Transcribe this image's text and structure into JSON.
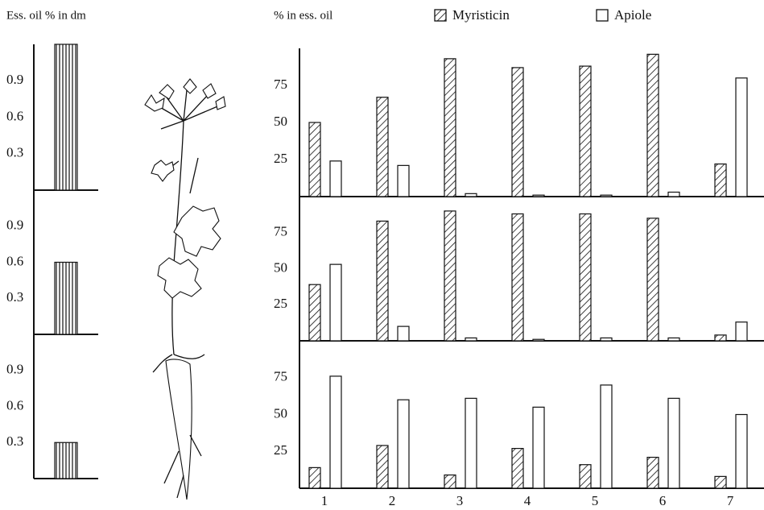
{
  "chart_data": [
    {
      "type": "bar",
      "y_label": "Ess. oil % in dm",
      "categories": [
        null
      ],
      "values": [
        1.2
      ],
      "color": "#111111",
      "hatch": "vertical",
      "ylim": [
        0,
        1.2
      ],
      "yticks": [
        0.3,
        0.6,
        0.9
      ]
    },
    {
      "type": "bar",
      "categories": [
        null
      ],
      "values": [
        0.6
      ],
      "color": "#111111",
      "hatch": "vertical",
      "ylim": [
        0,
        1.2
      ],
      "yticks": [
        0.3,
        0.6,
        0.9
      ]
    },
    {
      "type": "bar",
      "categories": [
        null
      ],
      "values": [
        0.3
      ],
      "color": "#111111",
      "hatch": "vertical",
      "ylim": [
        0,
        1.2
      ],
      "yticks": [
        0.3,
        0.6,
        0.9
      ]
    },
    {
      "type": "grouped_bar",
      "y_label": "% in ess. oil",
      "legend": "top",
      "categories": [
        null,
        null,
        null,
        null,
        null,
        null,
        null
      ],
      "series": [
        {
          "name": "Myristicin",
          "color": "#111111",
          "hatch": "diagonal",
          "values": [
            50,
            67,
            93,
            87,
            88,
            96,
            22
          ]
        },
        {
          "name": "Apiole",
          "color": "#111111",
          "hatch": "none",
          "values": [
            24,
            21,
            2,
            1,
            1,
            3,
            80
          ]
        }
      ],
      "ylim": [
        0,
        100
      ],
      "yticks": [
        25,
        50,
        75
      ]
    },
    {
      "type": "grouped_bar",
      "categories": [
        null,
        null,
        null,
        null,
        null,
        null,
        null
      ],
      "series": [
        {
          "color": "#111111",
          "hatch": "diagonal",
          "values": [
            39,
            83,
            90,
            88,
            88,
            85,
            4
          ]
        },
        {
          "color": "#111111",
          "hatch": "none",
          "values": [
            53,
            10,
            2,
            1,
            2,
            2,
            13
          ]
        }
      ],
      "ylim": [
        0,
        100
      ],
      "yticks": [
        25,
        50,
        75
      ]
    },
    {
      "type": "grouped_bar",
      "categories": [
        "1",
        "2",
        "3",
        "4",
        "5",
        "6",
        "7"
      ],
      "series": [
        {
          "color": "#111111",
          "hatch": "diagonal",
          "values": [
            14,
            29,
            9,
            27,
            16,
            21,
            8
          ]
        },
        {
          "color": "#111111",
          "hatch": "none",
          "values": [
            76,
            60,
            61,
            55,
            70,
            61,
            50
          ]
        }
      ],
      "ylim": [
        0,
        100
      ],
      "yticks": [
        25,
        50,
        75
      ]
    }
  ]
}
